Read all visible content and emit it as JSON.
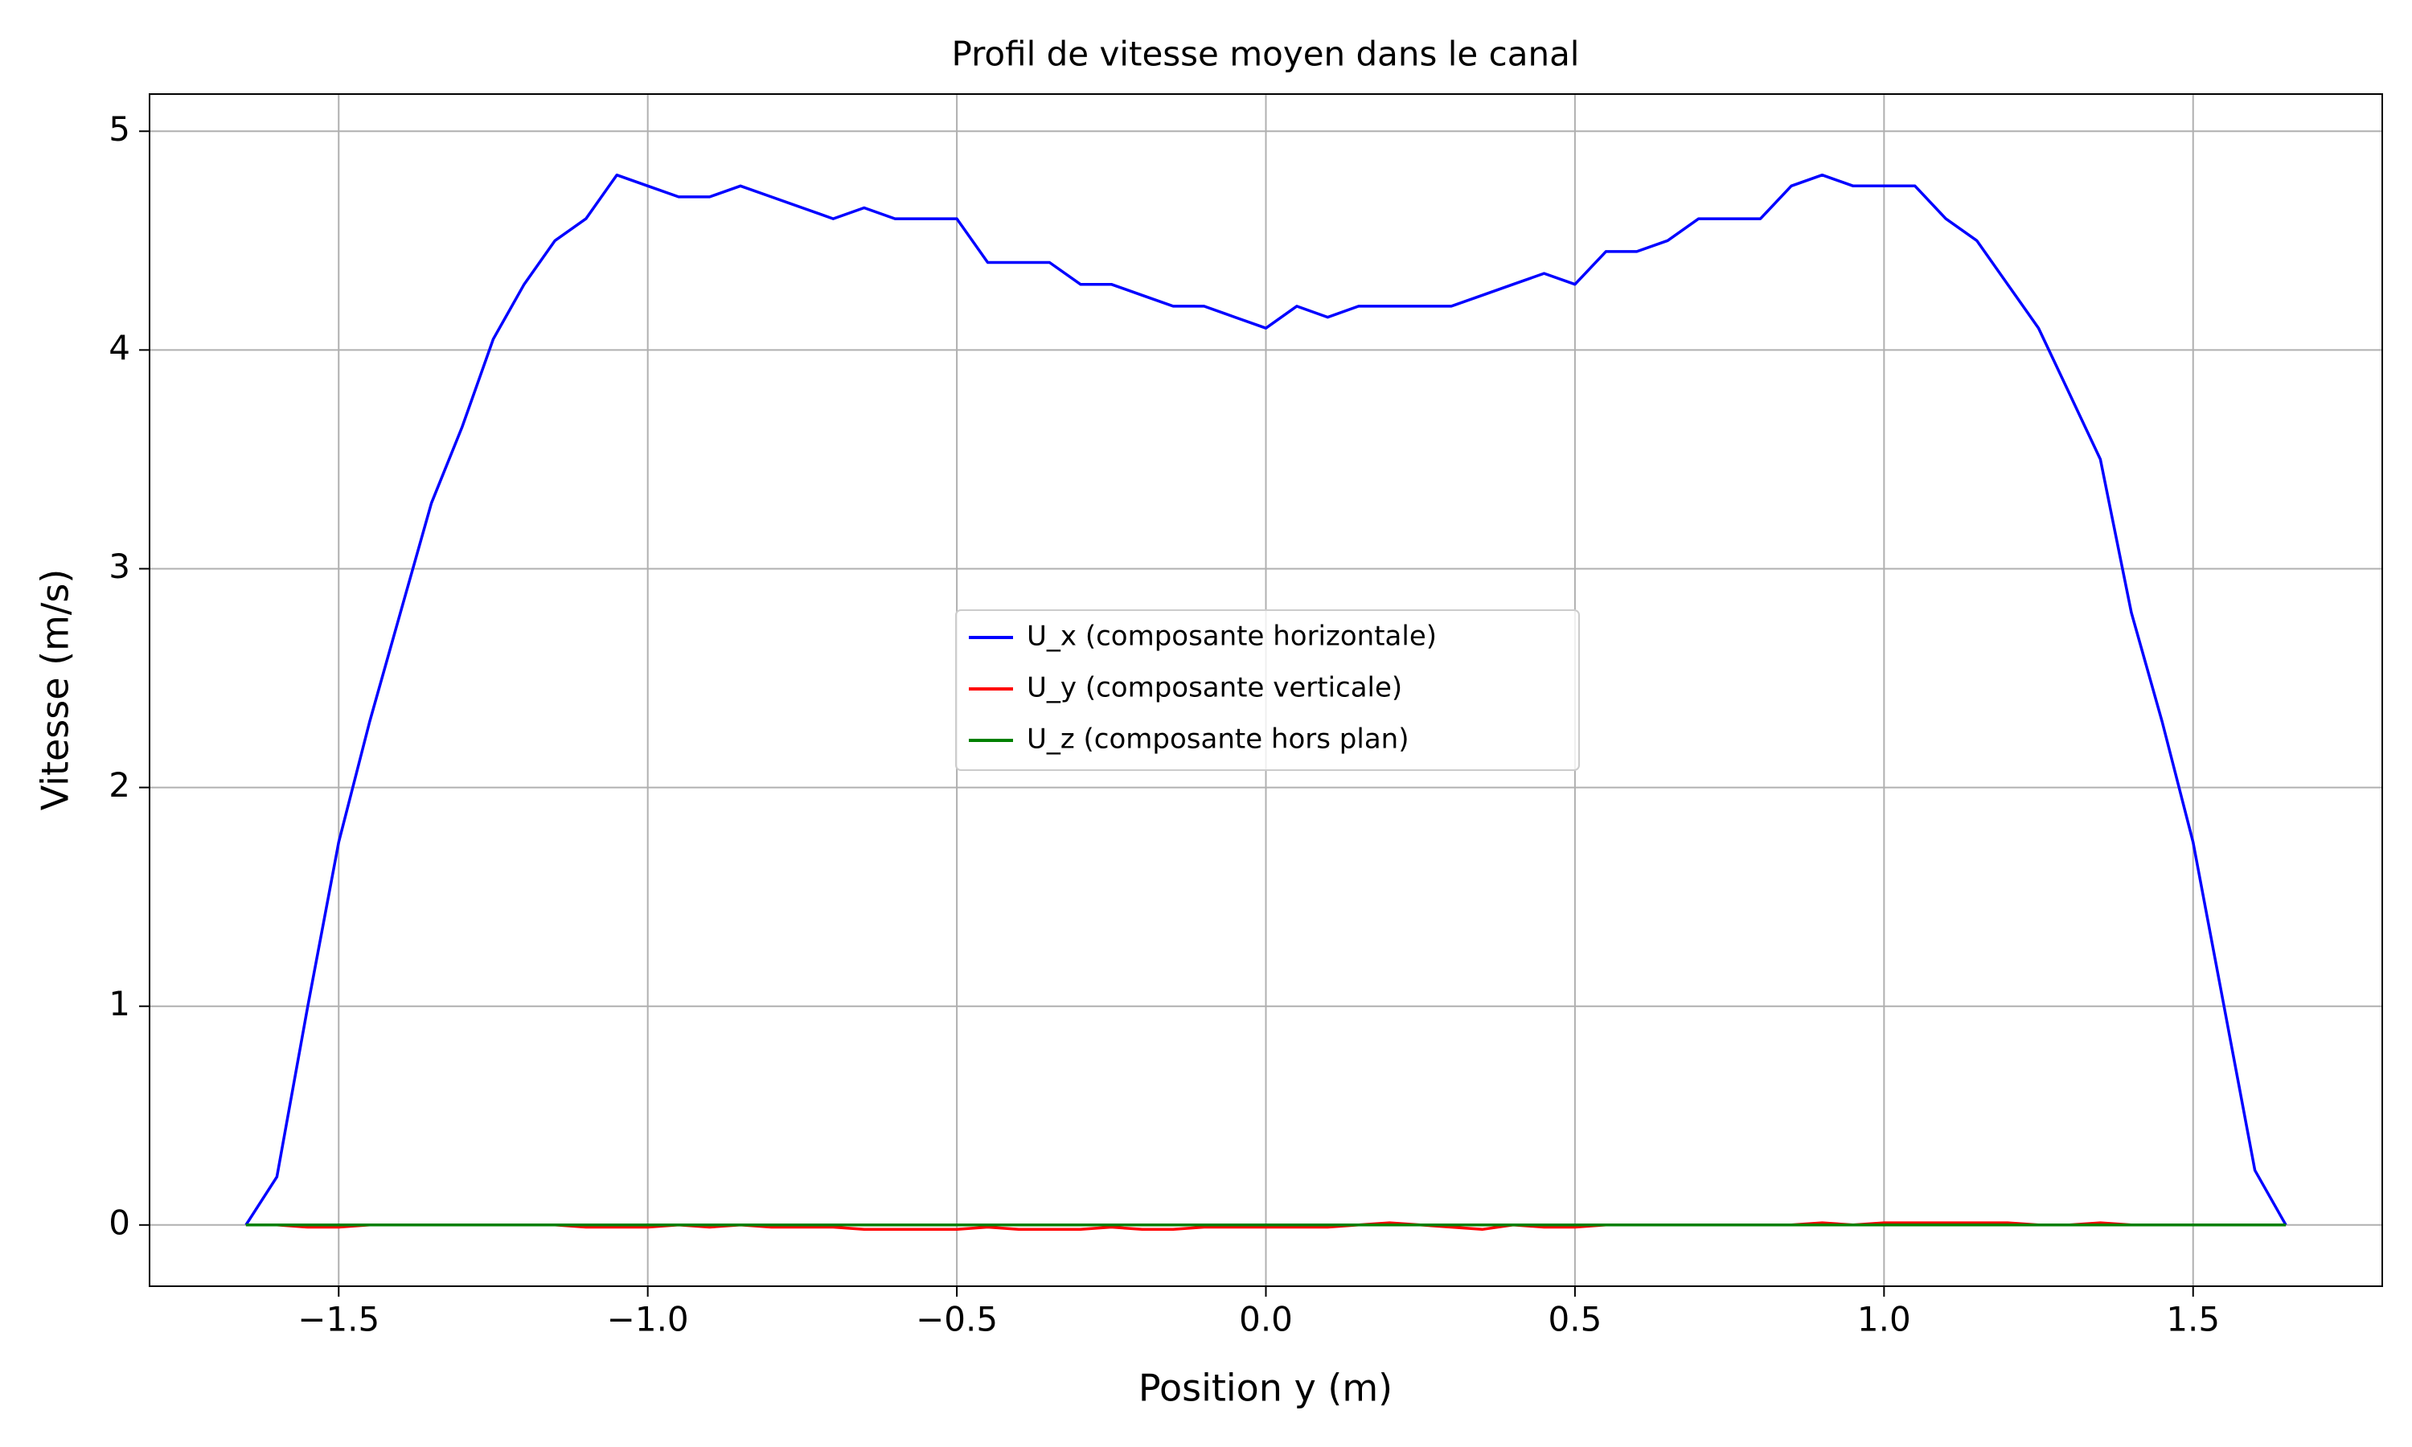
{
  "chart_data": {
    "type": "line",
    "title": "Profil de vitesse moyen dans le canal",
    "xlabel": "Position y (m)",
    "ylabel": "Vitesse (m/s)",
    "x": [
      -1.65,
      -1.6,
      -1.55,
      -1.5,
      -1.45,
      -1.4,
      -1.35,
      -1.3,
      -1.25,
      -1.2,
      -1.15,
      -1.1,
      -1.05,
      -1.0,
      -0.95,
      -0.9,
      -0.85,
      -0.8,
      -0.75,
      -0.7,
      -0.65,
      -0.6,
      -0.55,
      -0.5,
      -0.45,
      -0.4,
      -0.35,
      -0.3,
      -0.25,
      -0.2,
      -0.15,
      -0.1,
      -0.05,
      0.0,
      0.05,
      0.1,
      0.15,
      0.2,
      0.25,
      0.3,
      0.35,
      0.4,
      0.45,
      0.5,
      0.55,
      0.6,
      0.65,
      0.7,
      0.75,
      0.8,
      0.85,
      0.9,
      0.95,
      1.0,
      1.05,
      1.1,
      1.15,
      1.2,
      1.25,
      1.3,
      1.35,
      1.4,
      1.45,
      1.5,
      1.55,
      1.6,
      1.65
    ],
    "series": [
      {
        "name": "U_x (composante horizontale)",
        "color": "#0000ff",
        "values": [
          0,
          0.22,
          1.0,
          1.75,
          2.3,
          2.8,
          3.3,
          3.65,
          4.05,
          4.3,
          4.5,
          4.6,
          4.8,
          4.75,
          4.7,
          4.7,
          4.75,
          4.7,
          4.65,
          4.6,
          4.65,
          4.6,
          4.6,
          4.6,
          4.4,
          4.4,
          4.4,
          4.3,
          4.3,
          4.25,
          4.2,
          4.2,
          4.15,
          4.1,
          4.2,
          4.15,
          4.2,
          4.2,
          4.2,
          4.2,
          4.25,
          4.3,
          4.35,
          4.3,
          4.45,
          4.45,
          4.5,
          4.6,
          4.6,
          4.6,
          4.75,
          4.8,
          4.75,
          4.75,
          4.75,
          4.6,
          4.5,
          4.3,
          4.1,
          3.8,
          3.5,
          2.8,
          2.3,
          1.75,
          1.0,
          0.25,
          0
        ]
      },
      {
        "name": "U_y (composante verticale)",
        "color": "#ff0000",
        "values": [
          0,
          0,
          -0.01,
          -0.01,
          0,
          0,
          0,
          0,
          0,
          0,
          0,
          -0.01,
          -0.01,
          -0.01,
          0,
          -0.01,
          0,
          -0.01,
          -0.01,
          -0.01,
          -0.02,
          -0.02,
          -0.02,
          -0.02,
          -0.01,
          -0.02,
          -0.02,
          -0.02,
          -0.01,
          -0.02,
          -0.02,
          -0.01,
          -0.01,
          -0.01,
          -0.01,
          -0.01,
          0,
          0.01,
          0,
          -0.01,
          -0.02,
          0,
          -0.01,
          -0.01,
          0,
          0,
          0,
          0,
          0,
          0,
          0,
          0.01,
          0,
          0.01,
          0.01,
          0.01,
          0.01,
          0.01,
          0,
          0,
          0.01,
          0,
          0,
          0,
          0,
          0,
          0
        ]
      },
      {
        "name": "U_z (composante hors plan)",
        "color": "#008000",
        "values": [
          0,
          0,
          0,
          0,
          0,
          0,
          0,
          0,
          0,
          0,
          0,
          0,
          0,
          0,
          0,
          0,
          0,
          0,
          0,
          0,
          0,
          0,
          0,
          0,
          0,
          0,
          0,
          0,
          0,
          0,
          0,
          0,
          0,
          0,
          0,
          0,
          0,
          0,
          0,
          0,
          0,
          0,
          0,
          0,
          0,
          0,
          0,
          0,
          0,
          0,
          0,
          0,
          0,
          0,
          0,
          0,
          0,
          0,
          0,
          0,
          0,
          0,
          0,
          0,
          0,
          0,
          0
        ]
      }
    ],
    "xlim": [
      -1.806,
      1.806
    ],
    "ylim": [
      -0.28,
      5.17
    ],
    "xticks": [
      {
        "value": -1.5,
        "label": "−1.5"
      },
      {
        "value": -1.0,
        "label": "−1.0"
      },
      {
        "value": -0.5,
        "label": "−0.5"
      },
      {
        "value": 0,
        "label": "0.0"
      },
      {
        "value": 0.5,
        "label": "0.5"
      },
      {
        "value": 1.0,
        "label": "1.0"
      },
      {
        "value": 1.5,
        "label": "1.5"
      }
    ],
    "yticks": [
      0,
      1,
      2,
      3,
      4,
      5
    ],
    "grid": true,
    "legend": "center"
  }
}
